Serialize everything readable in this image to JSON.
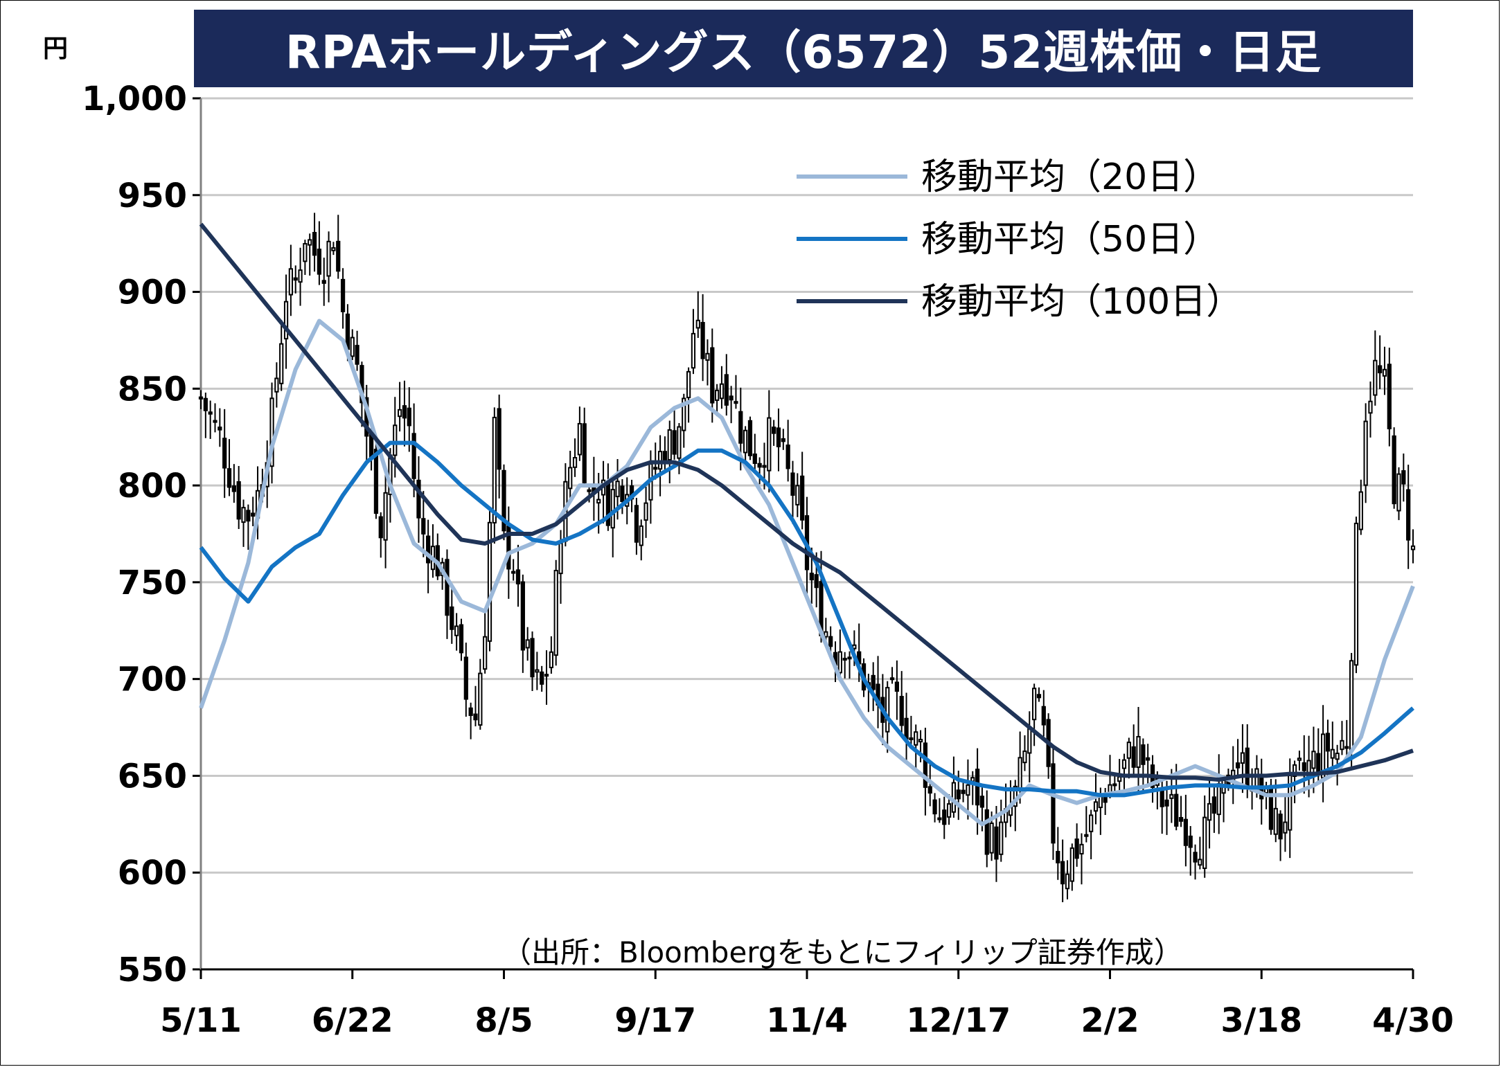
{
  "title": "RPAホールディングス（6572）52週株価・日足",
  "unit": "円",
  "source": "（出所：Bloombergをもとにフィリップ証券作成）",
  "colors": {
    "title_bg": "#1b2a5a",
    "ma20": "#9bb8d9",
    "ma50": "#1474c4",
    "ma100": "#1f3458",
    "candle": "#000000",
    "grid": "#c8c8c8"
  },
  "chart_data": {
    "type": "candlestick",
    "ylim": [
      550,
      1000
    ],
    "yticks": [
      "550",
      "600",
      "650",
      "700",
      "750",
      "800",
      "850",
      "900",
      "950",
      "1,000"
    ],
    "ytick_values": [
      550,
      600,
      650,
      700,
      750,
      800,
      850,
      900,
      950,
      1000
    ],
    "xticks": [
      "5/11",
      "6/22",
      "8/5",
      "9/17",
      "11/4",
      "12/17",
      "2/2",
      "3/18",
      "4/30"
    ],
    "legend": [
      {
        "key": "ma20",
        "label": "移動平均（20日）"
      },
      {
        "key": "ma50",
        "label": "移動平均（50日）"
      },
      {
        "key": "ma100",
        "label": "移動平均（100日）"
      }
    ],
    "close_path": [
      [
        0,
        845
      ],
      [
        4,
        825
      ],
      [
        8,
        790
      ],
      [
        10,
        785
      ],
      [
        12,
        795
      ],
      [
        15,
        835
      ],
      [
        18,
        900
      ],
      [
        20,
        905
      ],
      [
        22,
        930
      ],
      [
        24,
        920
      ],
      [
        26,
        915
      ],
      [
        28,
        930
      ],
      [
        30,
        890
      ],
      [
        33,
        860
      ],
      [
        36,
        810
      ],
      [
        38,
        780
      ],
      [
        40,
        815
      ],
      [
        42,
        840
      ],
      [
        44,
        830
      ],
      [
        46,
        780
      ],
      [
        48,
        770
      ],
      [
        50,
        760
      ],
      [
        52,
        740
      ],
      [
        54,
        720
      ],
      [
        56,
        690
      ],
      [
        58,
        680
      ],
      [
        60,
        730
      ],
      [
        62,
        830
      ],
      [
        64,
        770
      ],
      [
        66,
        760
      ],
      [
        68,
        720
      ],
      [
        70,
        700
      ],
      [
        72,
        695
      ],
      [
        74,
        715
      ],
      [
        76,
        780
      ],
      [
        78,
        810
      ],
      [
        80,
        830
      ],
      [
        82,
        795
      ],
      [
        84,
        800
      ],
      [
        86,
        790
      ],
      [
        88,
        800
      ],
      [
        90,
        805
      ],
      [
        92,
        780
      ],
      [
        94,
        795
      ],
      [
        96,
        810
      ],
      [
        98,
        820
      ],
      [
        100,
        825
      ],
      [
        102,
        840
      ],
      [
        104,
        880
      ],
      [
        106,
        870
      ],
      [
        108,
        850
      ],
      [
        110,
        855
      ],
      [
        112,
        850
      ],
      [
        114,
        830
      ],
      [
        116,
        820
      ],
      [
        118,
        815
      ],
      [
        120,
        825
      ],
      [
        122,
        820
      ],
      [
        124,
        805
      ],
      [
        126,
        790
      ],
      [
        128,
        760
      ],
      [
        130,
        740
      ],
      [
        132,
        725
      ],
      [
        134,
        715
      ],
      [
        136,
        720
      ],
      [
        138,
        710
      ],
      [
        140,
        700
      ],
      [
        142,
        690
      ],
      [
        144,
        680
      ],
      [
        146,
        690
      ],
      [
        148,
        685
      ],
      [
        150,
        670
      ],
      [
        152,
        665
      ],
      [
        154,
        640
      ],
      [
        156,
        630
      ],
      [
        158,
        632
      ],
      [
        160,
        640
      ],
      [
        162,
        645
      ],
      [
        164,
        640
      ],
      [
        166,
        620
      ],
      [
        168,
        615
      ],
      [
        170,
        625
      ],
      [
        172,
        640
      ],
      [
        174,
        660
      ],
      [
        176,
        690
      ],
      [
        178,
        670
      ],
      [
        180,
        620
      ],
      [
        182,
        600
      ],
      [
        184,
        610
      ],
      [
        186,
        615
      ],
      [
        188,
        625
      ],
      [
        190,
        640
      ],
      [
        192,
        645
      ],
      [
        194,
        650
      ],
      [
        196,
        660
      ],
      [
        198,
        665
      ],
      [
        200,
        650
      ],
      [
        202,
        640
      ],
      [
        204,
        635
      ],
      [
        206,
        630
      ],
      [
        208,
        625
      ],
      [
        210,
        615
      ],
      [
        212,
        620
      ],
      [
        214,
        630
      ],
      [
        216,
        640
      ],
      [
        218,
        660
      ],
      [
        220,
        655
      ],
      [
        222,
        650
      ],
      [
        224,
        640
      ],
      [
        226,
        630
      ],
      [
        228,
        622
      ],
      [
        230,
        640
      ],
      [
        232,
        650
      ],
      [
        234,
        655
      ],
      [
        236,
        660
      ],
      [
        238,
        665
      ],
      [
        240,
        662
      ],
      [
        242,
        670
      ],
      [
        244,
        770
      ],
      [
        246,
        840
      ],
      [
        248,
        860
      ],
      [
        250,
        850
      ],
      [
        252,
        800
      ],
      [
        254,
        795
      ],
      [
        256,
        765
      ]
    ],
    "series": [
      {
        "name": "移動平均（20日）",
        "key": "ma20",
        "points": [
          [
            0,
            685
          ],
          [
            5,
            720
          ],
          [
            10,
            760
          ],
          [
            15,
            820
          ],
          [
            20,
            860
          ],
          [
            25,
            885
          ],
          [
            30,
            875
          ],
          [
            35,
            840
          ],
          [
            40,
            800
          ],
          [
            45,
            770
          ],
          [
            50,
            760
          ],
          [
            55,
            740
          ],
          [
            60,
            735
          ],
          [
            65,
            765
          ],
          [
            70,
            770
          ],
          [
            75,
            780
          ],
          [
            80,
            800
          ],
          [
            85,
            800
          ],
          [
            90,
            810
          ],
          [
            95,
            830
          ],
          [
            100,
            840
          ],
          [
            105,
            845
          ],
          [
            110,
            835
          ],
          [
            115,
            810
          ],
          [
            120,
            790
          ],
          [
            125,
            760
          ],
          [
            130,
            730
          ],
          [
            135,
            700
          ],
          [
            140,
            680
          ],
          [
            145,
            665
          ],
          [
            150,
            655
          ],
          [
            155,
            645
          ],
          [
            160,
            635
          ],
          [
            165,
            625
          ],
          [
            170,
            632
          ],
          [
            175,
            645
          ],
          [
            180,
            640
          ],
          [
            185,
            636
          ],
          [
            190,
            640
          ],
          [
            195,
            642
          ],
          [
            200,
            645
          ],
          [
            205,
            650
          ],
          [
            210,
            655
          ],
          [
            215,
            650
          ],
          [
            220,
            645
          ],
          [
            225,
            640
          ],
          [
            230,
            640
          ],
          [
            235,
            645
          ],
          [
            240,
            652
          ],
          [
            245,
            670
          ],
          [
            250,
            710
          ],
          [
            256,
            748
          ]
        ]
      },
      {
        "name": "移動平均（50日）",
        "key": "ma50",
        "points": [
          [
            0,
            768
          ],
          [
            5,
            752
          ],
          [
            10,
            740
          ],
          [
            15,
            758
          ],
          [
            20,
            768
          ],
          [
            25,
            775
          ],
          [
            30,
            795
          ],
          [
            35,
            812
          ],
          [
            40,
            822
          ],
          [
            45,
            822
          ],
          [
            50,
            812
          ],
          [
            55,
            800
          ],
          [
            60,
            790
          ],
          [
            65,
            780
          ],
          [
            70,
            772
          ],
          [
            75,
            770
          ],
          [
            80,
            775
          ],
          [
            85,
            782
          ],
          [
            90,
            792
          ],
          [
            95,
            803
          ],
          [
            100,
            810
          ],
          [
            105,
            818
          ],
          [
            110,
            818
          ],
          [
            115,
            812
          ],
          [
            120,
            800
          ],
          [
            125,
            782
          ],
          [
            130,
            760
          ],
          [
            135,
            730
          ],
          [
            140,
            700
          ],
          [
            145,
            680
          ],
          [
            150,
            665
          ],
          [
            155,
            655
          ],
          [
            160,
            648
          ],
          [
            165,
            645
          ],
          [
            170,
            643
          ],
          [
            175,
            643
          ],
          [
            180,
            642
          ],
          [
            185,
            642
          ],
          [
            190,
            640
          ],
          [
            195,
            640
          ],
          [
            200,
            642
          ],
          [
            205,
            644
          ],
          [
            210,
            645
          ],
          [
            215,
            645
          ],
          [
            220,
            644
          ],
          [
            225,
            644
          ],
          [
            230,
            645
          ],
          [
            235,
            650
          ],
          [
            240,
            655
          ],
          [
            245,
            662
          ],
          [
            250,
            672
          ],
          [
            256,
            685
          ]
        ]
      },
      {
        "name": "移動平均（100日）",
        "key": "ma100",
        "points": [
          [
            0,
            935
          ],
          [
            5,
            920
          ],
          [
            10,
            905
          ],
          [
            15,
            890
          ],
          [
            20,
            875
          ],
          [
            25,
            860
          ],
          [
            30,
            845
          ],
          [
            35,
            830
          ],
          [
            40,
            815
          ],
          [
            45,
            800
          ],
          [
            50,
            785
          ],
          [
            55,
            772
          ],
          [
            60,
            770
          ],
          [
            65,
            775
          ],
          [
            70,
            775
          ],
          [
            75,
            780
          ],
          [
            80,
            790
          ],
          [
            85,
            800
          ],
          [
            90,
            808
          ],
          [
            95,
            812
          ],
          [
            100,
            812
          ],
          [
            105,
            808
          ],
          [
            110,
            800
          ],
          [
            115,
            790
          ],
          [
            120,
            780
          ],
          [
            125,
            770
          ],
          [
            130,
            762
          ],
          [
            135,
            755
          ],
          [
            140,
            745
          ],
          [
            145,
            735
          ],
          [
            150,
            725
          ],
          [
            155,
            715
          ],
          [
            160,
            705
          ],
          [
            165,
            695
          ],
          [
            170,
            685
          ],
          [
            175,
            675
          ],
          [
            180,
            665
          ],
          [
            185,
            657
          ],
          [
            190,
            652
          ],
          [
            195,
            650
          ],
          [
            200,
            650
          ],
          [
            205,
            649
          ],
          [
            210,
            649
          ],
          [
            215,
            648
          ],
          [
            220,
            650
          ],
          [
            225,
            650
          ],
          [
            230,
            651
          ],
          [
            235,
            651
          ],
          [
            240,
            652
          ],
          [
            245,
            655
          ],
          [
            250,
            658
          ],
          [
            256,
            663
          ]
        ]
      }
    ]
  }
}
